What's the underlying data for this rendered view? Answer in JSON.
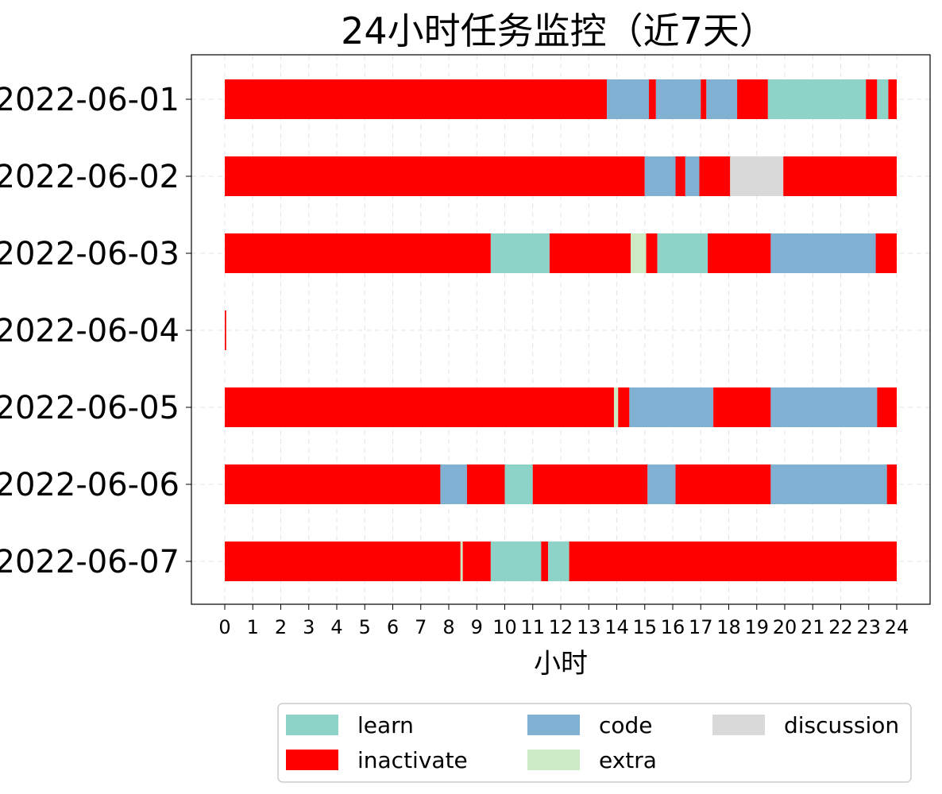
{
  "chart_data": {
    "type": "bar",
    "orientation": "horizontal",
    "stacked": true,
    "title": "24小时任务监控（近7天）",
    "xlabel": "小时",
    "ylabel": "",
    "xlim": [
      0,
      24
    ],
    "x_ticks": [
      "0",
      "1",
      "2",
      "3",
      "4",
      "5",
      "6",
      "7",
      "8",
      "9",
      "10",
      "11",
      "12",
      "13",
      "14",
      "15",
      "16",
      "17",
      "18",
      "19",
      "20",
      "21",
      "22",
      "23",
      "24"
    ],
    "grid": true,
    "legend": {
      "position": "bottom-right",
      "entries": [
        {
          "name": "learn",
          "color": "#8dd3c7"
        },
        {
          "name": "code",
          "color": "#80b1d3"
        },
        {
          "name": "discussion",
          "color": "#d9d9d9"
        },
        {
          "name": "inactivate",
          "color": "#ff0000"
        },
        {
          "name": "extra",
          "color": "#ccebc5"
        }
      ]
    },
    "categories": [
      "2022-06-01",
      "2022-06-02",
      "2022-06-03",
      "2022-06-04",
      "2022-06-05",
      "2022-06-06",
      "2022-06-07"
    ],
    "rows": [
      {
        "date": "2022-06-01",
        "segments": [
          {
            "task": "inactivate",
            "start": 0,
            "end": 13.65
          },
          {
            "task": "code",
            "start": 13.65,
            "end": 15.15
          },
          {
            "task": "inactivate",
            "start": 15.15,
            "end": 15.4
          },
          {
            "task": "code",
            "start": 15.4,
            "end": 17.0
          },
          {
            "task": "inactivate",
            "start": 17.0,
            "end": 17.2
          },
          {
            "task": "code",
            "start": 17.2,
            "end": 18.3
          },
          {
            "task": "inactivate",
            "start": 18.3,
            "end": 19.4
          },
          {
            "task": "learn",
            "start": 19.4,
            "end": 22.9
          },
          {
            "task": "inactivate",
            "start": 22.9,
            "end": 23.3
          },
          {
            "task": "learn",
            "start": 23.3,
            "end": 23.7
          },
          {
            "task": "inactivate",
            "start": 23.7,
            "end": 24
          }
        ]
      },
      {
        "date": "2022-06-02",
        "segments": [
          {
            "task": "inactivate",
            "start": 0,
            "end": 15.0
          },
          {
            "task": "code",
            "start": 15.0,
            "end": 16.1
          },
          {
            "task": "inactivate",
            "start": 16.1,
            "end": 16.45
          },
          {
            "task": "code",
            "start": 16.45,
            "end": 16.95
          },
          {
            "task": "inactivate",
            "start": 16.95,
            "end": 18.05
          },
          {
            "task": "discussion",
            "start": 18.05,
            "end": 19.95
          },
          {
            "task": "inactivate",
            "start": 19.95,
            "end": 24
          }
        ]
      },
      {
        "date": "2022-06-03",
        "segments": [
          {
            "task": "inactivate",
            "start": 0,
            "end": 9.5
          },
          {
            "task": "learn",
            "start": 9.5,
            "end": 11.6
          },
          {
            "task": "inactivate",
            "start": 11.6,
            "end": 14.5
          },
          {
            "task": "extra",
            "start": 14.5,
            "end": 15.05
          },
          {
            "task": "inactivate",
            "start": 15.05,
            "end": 15.45
          },
          {
            "task": "learn",
            "start": 15.45,
            "end": 17.25
          },
          {
            "task": "inactivate",
            "start": 17.25,
            "end": 19.5
          },
          {
            "task": "code",
            "start": 19.5,
            "end": 23.25
          },
          {
            "task": "inactivate",
            "start": 23.25,
            "end": 24
          }
        ]
      },
      {
        "date": "2022-06-04",
        "segments": [
          {
            "task": "inactivate",
            "start": 0,
            "end": 0.05
          }
        ]
      },
      {
        "date": "2022-06-05",
        "segments": [
          {
            "task": "inactivate",
            "start": 0,
            "end": 13.9
          },
          {
            "task": "extra",
            "start": 13.9,
            "end": 14.05
          },
          {
            "task": "inactivate",
            "start": 14.05,
            "end": 14.45
          },
          {
            "task": "code",
            "start": 14.45,
            "end": 17.45
          },
          {
            "task": "inactivate",
            "start": 17.45,
            "end": 19.5
          },
          {
            "task": "code",
            "start": 19.5,
            "end": 23.3
          },
          {
            "task": "inactivate",
            "start": 23.3,
            "end": 24
          }
        ]
      },
      {
        "date": "2022-06-06",
        "segments": [
          {
            "task": "inactivate",
            "start": 0,
            "end": 7.7
          },
          {
            "task": "code",
            "start": 7.7,
            "end": 8.65
          },
          {
            "task": "inactivate",
            "start": 8.65,
            "end": 10.0
          },
          {
            "task": "learn",
            "start": 10.0,
            "end": 11.0
          },
          {
            "task": "inactivate",
            "start": 11.0,
            "end": 15.1
          },
          {
            "task": "code",
            "start": 15.1,
            "end": 16.1
          },
          {
            "task": "inactivate",
            "start": 16.1,
            "end": 19.5
          },
          {
            "task": "code",
            "start": 19.5,
            "end": 23.65
          },
          {
            "task": "inactivate",
            "start": 23.65,
            "end": 24
          }
        ]
      },
      {
        "date": "2022-06-07",
        "segments": [
          {
            "task": "inactivate",
            "start": 0,
            "end": 8.42
          },
          {
            "task": "extra",
            "start": 8.42,
            "end": 8.5
          },
          {
            "task": "inactivate",
            "start": 8.5,
            "end": 9.5
          },
          {
            "task": "learn",
            "start": 9.5,
            "end": 11.3
          },
          {
            "task": "inactivate",
            "start": 11.3,
            "end": 11.55
          },
          {
            "task": "learn",
            "start": 11.55,
            "end": 12.3
          },
          {
            "task": "inactivate",
            "start": 12.3,
            "end": 24
          }
        ]
      }
    ]
  }
}
